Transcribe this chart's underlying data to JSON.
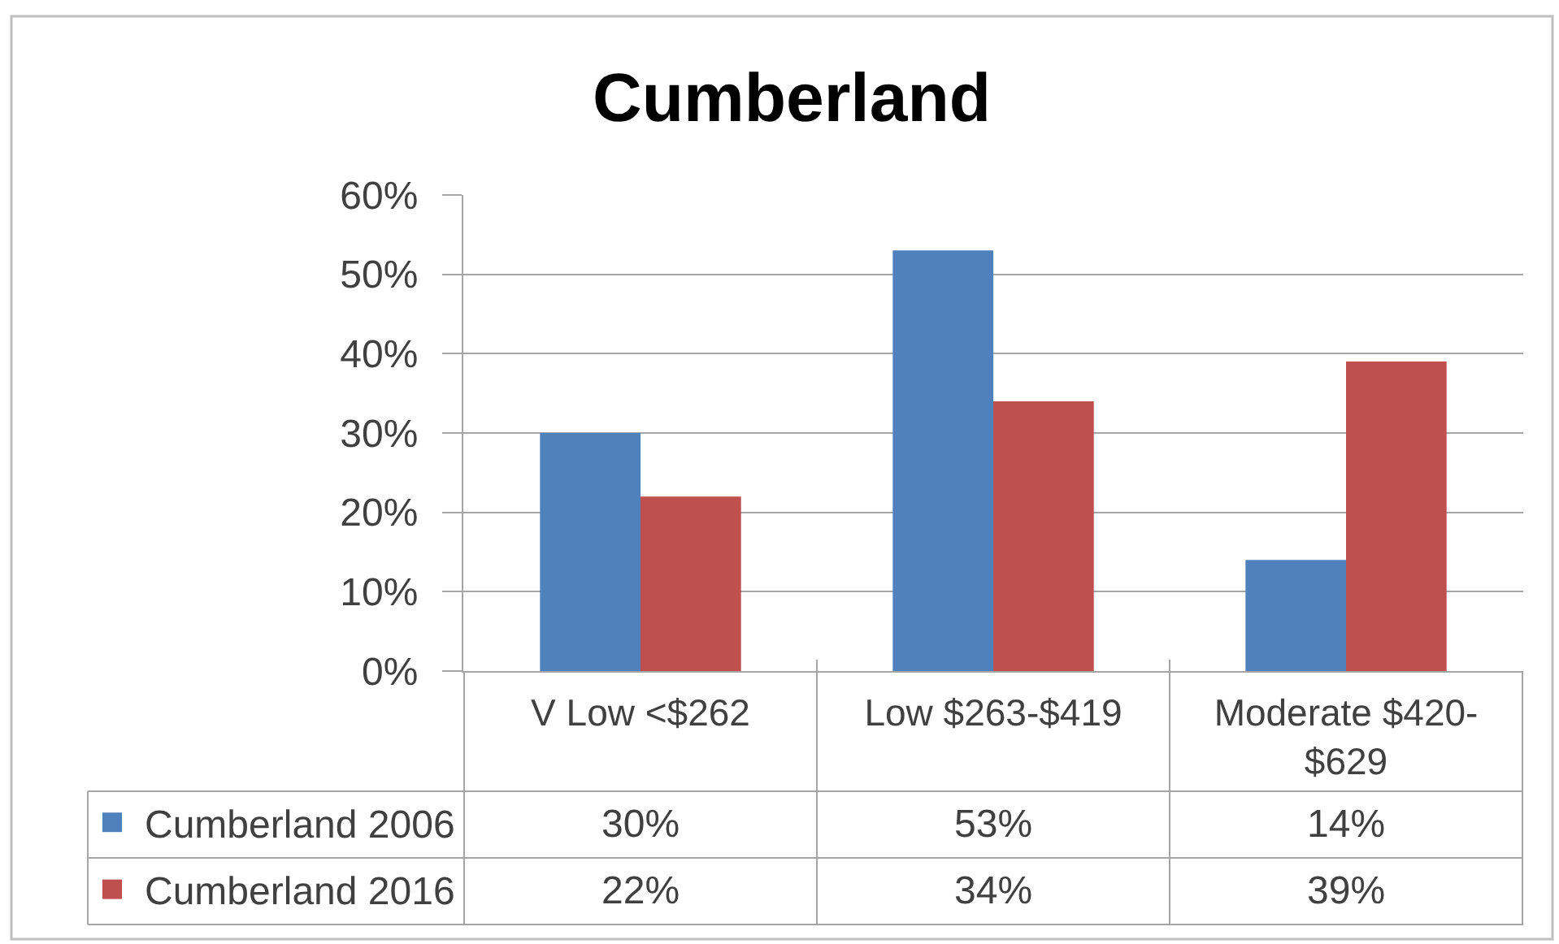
{
  "chart_data": {
    "type": "bar",
    "title": "Cumberland",
    "categories": [
      "V Low <$262",
      "Low $263-$419",
      "Moderate $420-$629"
    ],
    "series": [
      {
        "name": "Cumberland 2006",
        "color": "#4f81bd",
        "values": [
          30,
          53,
          14
        ],
        "value_labels": [
          "30%",
          "53%",
          "14%"
        ]
      },
      {
        "name": "Cumberland 2016",
        "color": "#c0504d",
        "values": [
          22,
          34,
          39
        ],
        "value_labels": [
          "22%",
          "34%",
          "39%"
        ]
      }
    ],
    "ylim": [
      0,
      60
    ],
    "yticks": [
      {
        "value": 0,
        "label": "0%"
      },
      {
        "value": 10,
        "label": "10%"
      },
      {
        "value": 20,
        "label": "20%"
      },
      {
        "value": 30,
        "label": "30%"
      },
      {
        "value": 40,
        "label": "40%"
      },
      {
        "value": 50,
        "label": "50%"
      },
      {
        "value": 60,
        "label": "60%"
      }
    ],
    "grid": "y",
    "legend": "bottom left"
  }
}
